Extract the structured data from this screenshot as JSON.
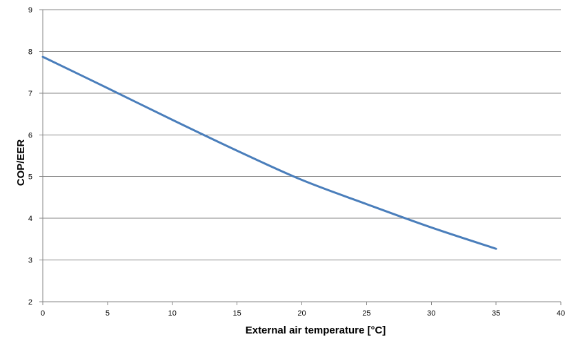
{
  "chart_data": {
    "type": "line",
    "title": "",
    "xlabel": "External air temperature  [°C]",
    "ylabel": "COP/EER",
    "xlim": [
      0,
      40
    ],
    "ylim": [
      2,
      9
    ],
    "x_ticks": [
      0,
      5,
      10,
      15,
      20,
      25,
      30,
      35,
      40
    ],
    "y_ticks": [
      2,
      3,
      4,
      5,
      6,
      7,
      8,
      9
    ],
    "grid": "horizontal",
    "legend": "none",
    "series": [
      {
        "color": "#4a7ebb",
        "x": [
          0,
          5,
          10,
          15,
          20,
          25,
          30,
          35
        ],
        "y": [
          7.87,
          7.12,
          6.36,
          5.62,
          4.92,
          4.34,
          3.78,
          3.27
        ]
      }
    ]
  }
}
